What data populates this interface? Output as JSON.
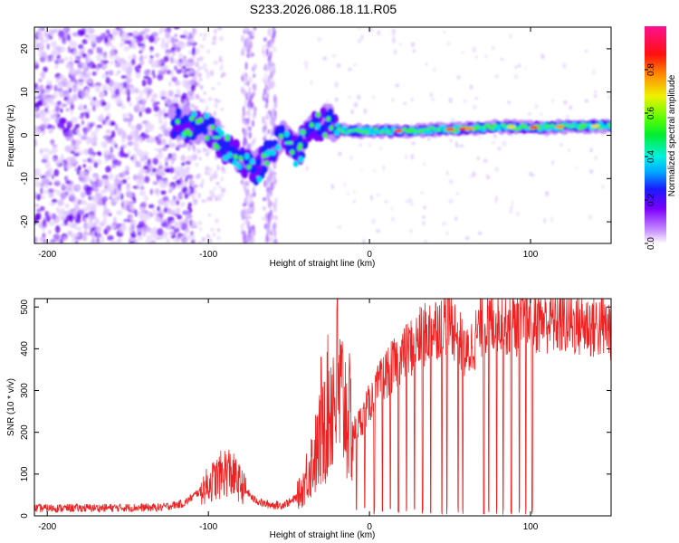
{
  "title": "S233.2026.086.18.11.R05",
  "colors": {
    "snr_line": "#ee2222",
    "axis": "#000000"
  },
  "chart_data": [
    {
      "type": "heatmap",
      "xlabel": "Height of straight line (km)",
      "ylabel": "Frequency (Hz)",
      "xlim": [
        -208,
        150
      ],
      "ylim": [
        -25,
        25
      ],
      "xticks": [
        -200,
        -100,
        0,
        100
      ],
      "yticks": [
        -20,
        -10,
        0,
        10,
        20
      ],
      "colorbar": {
        "label": "Normalized spectral amplitude",
        "range": [
          0,
          1
        ],
        "ticks": [
          0.0,
          0.2,
          0.4,
          0.6,
          0.8
        ],
        "tick_labels": [
          "0.0",
          "0.2",
          "0.4",
          "0.6",
          "0.8"
        ]
      },
      "ridge": [
        [
          -120,
          3.0
        ],
        [
          -110,
          2.0
        ],
        [
          -100,
          1.5
        ],
        [
          -90,
          -2.5
        ],
        [
          -80,
          -5.5
        ],
        [
          -70,
          -8.0
        ],
        [
          -55,
          0.5
        ],
        [
          -45,
          -4.0
        ],
        [
          -35,
          2.0
        ],
        [
          -25,
          3.0
        ],
        [
          -15,
          1.0
        ],
        [
          0,
          1.0
        ],
        [
          20,
          1.0
        ],
        [
          40,
          1.2
        ],
        [
          60,
          1.5
        ],
        [
          80,
          2.0
        ],
        [
          100,
          1.8
        ],
        [
          120,
          2.0
        ],
        [
          150,
          2.2
        ]
      ]
    },
    {
      "type": "line",
      "xlabel": "Height of straight line (km)",
      "ylabel": "SNR (10 * v/v)",
      "xlim": [
        -208,
        150
      ],
      "ylim": [
        0,
        520
      ],
      "xticks": [
        -200,
        -100,
        0,
        100
      ],
      "yticks": [
        0,
        100,
        200,
        300,
        400,
        500
      ],
      "series": [
        {
          "name": "SNR",
          "envelope_x": [
            -208,
            -130,
            -115,
            -105,
            -95,
            -88,
            -80,
            -72,
            -65,
            -55,
            -48,
            -42,
            -38,
            -32,
            -28,
            -25,
            -20,
            -15,
            -10,
            -5,
            0,
            10,
            20,
            30,
            40,
            50,
            55,
            60,
            65,
            70,
            80,
            90,
            100,
            110,
            120,
            130,
            140,
            150
          ],
          "envelope_y": [
            18,
            20,
            30,
            60,
            90,
            110,
            75,
            40,
            28,
            25,
            35,
            60,
            110,
            160,
            220,
            270,
            300,
            260,
            200,
            230,
            270,
            340,
            380,
            420,
            450,
            470,
            430,
            380,
            420,
            460,
            470,
            460,
            470,
            470,
            465,
            460,
            455,
            450
          ],
          "dropouts_x": [
            -8,
            -3,
            3,
            8,
            13,
            18,
            23,
            28,
            33,
            38,
            45,
            48,
            55,
            58,
            71,
            74,
            79,
            83,
            88,
            93,
            97,
            101
          ],
          "spikes": [
            [
              -20,
              520
            ],
            [
              -30,
              380
            ],
            [
              -28,
              320
            ]
          ]
        }
      ]
    }
  ]
}
